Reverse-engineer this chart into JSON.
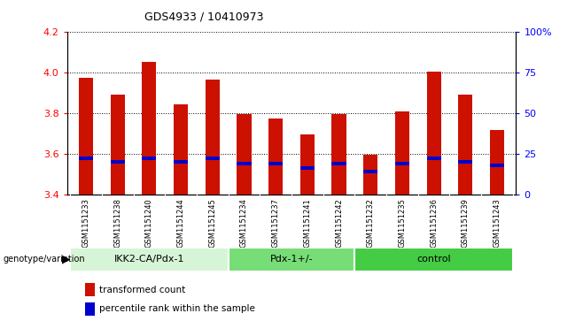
{
  "title": "GDS4933 / 10410973",
  "samples": [
    "GSM1151233",
    "GSM1151238",
    "GSM1151240",
    "GSM1151244",
    "GSM1151245",
    "GSM1151234",
    "GSM1151237",
    "GSM1151241",
    "GSM1151242",
    "GSM1151232",
    "GSM1151235",
    "GSM1151236",
    "GSM1151239",
    "GSM1151243"
  ],
  "transformed_count": [
    3.975,
    3.89,
    4.055,
    3.845,
    3.965,
    3.795,
    3.775,
    3.695,
    3.795,
    3.595,
    3.81,
    4.005,
    3.89,
    3.715
  ],
  "percentile_rank": [
    22,
    20,
    22,
    20,
    22,
    19,
    19,
    16,
    19,
    14,
    19,
    22,
    20,
    18
  ],
  "groups": [
    {
      "label": "IKK2-CA/Pdx-1",
      "start": 0,
      "end": 5,
      "color": "#d6f5d6"
    },
    {
      "label": "Pdx-1+/-",
      "start": 5,
      "end": 9,
      "color": "#77dd77"
    },
    {
      "label": "control",
      "start": 9,
      "end": 14,
      "color": "#44cc44"
    }
  ],
  "ylim": [
    3.4,
    4.2
  ],
  "right_ylim": [
    0,
    100
  ],
  "right_yticks": [
    0,
    25,
    50,
    75,
    100
  ],
  "right_yticklabels": [
    "0",
    "25",
    "50",
    "75",
    "100%"
  ],
  "left_yticks": [
    3.4,
    3.6,
    3.8,
    4.0,
    4.2
  ],
  "bar_color": "#cc1100",
  "percentile_color": "#0000cc",
  "bar_width": 0.45,
  "grid_color": "black",
  "samp_bg_color": "#d3d3d3"
}
